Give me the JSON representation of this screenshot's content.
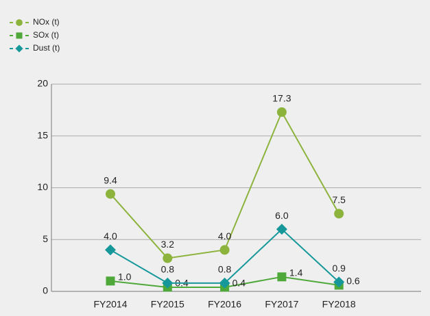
{
  "chart_data": {
    "type": "line",
    "categories": [
      "FY2014",
      "FY2015",
      "FY2016",
      "FY2017",
      "FY2018"
    ],
    "series": [
      {
        "name": "NOx (t)",
        "color": "#8cb33c",
        "marker": "circle",
        "values": [
          9.4,
          3.2,
          4.0,
          17.3,
          7.5
        ],
        "value_labels": [
          "9.4",
          "3.2",
          "4.0",
          "17.3",
          "7.5"
        ]
      },
      {
        "name": "SOx (t)",
        "color": "#4ea83a",
        "marker": "square",
        "values": [
          1.0,
          0.4,
          0.4,
          1.4,
          0.6
        ],
        "value_labels": [
          "1.0",
          "0.4",
          "0.4",
          "1.4",
          "0.6"
        ]
      },
      {
        "name": "Dust (t)",
        "color": "#16989a",
        "marker": "diamond",
        "values": [
          4.0,
          0.8,
          0.8,
          6.0,
          0.9
        ],
        "value_labels": [
          "4.0",
          "0.8",
          "0.8",
          "6.0",
          "0.9"
        ]
      }
    ],
    "ylim": [
      0,
      20
    ],
    "yticks": [
      0,
      5,
      10,
      15,
      20
    ],
    "grid": true,
    "legend": "top-left"
  }
}
